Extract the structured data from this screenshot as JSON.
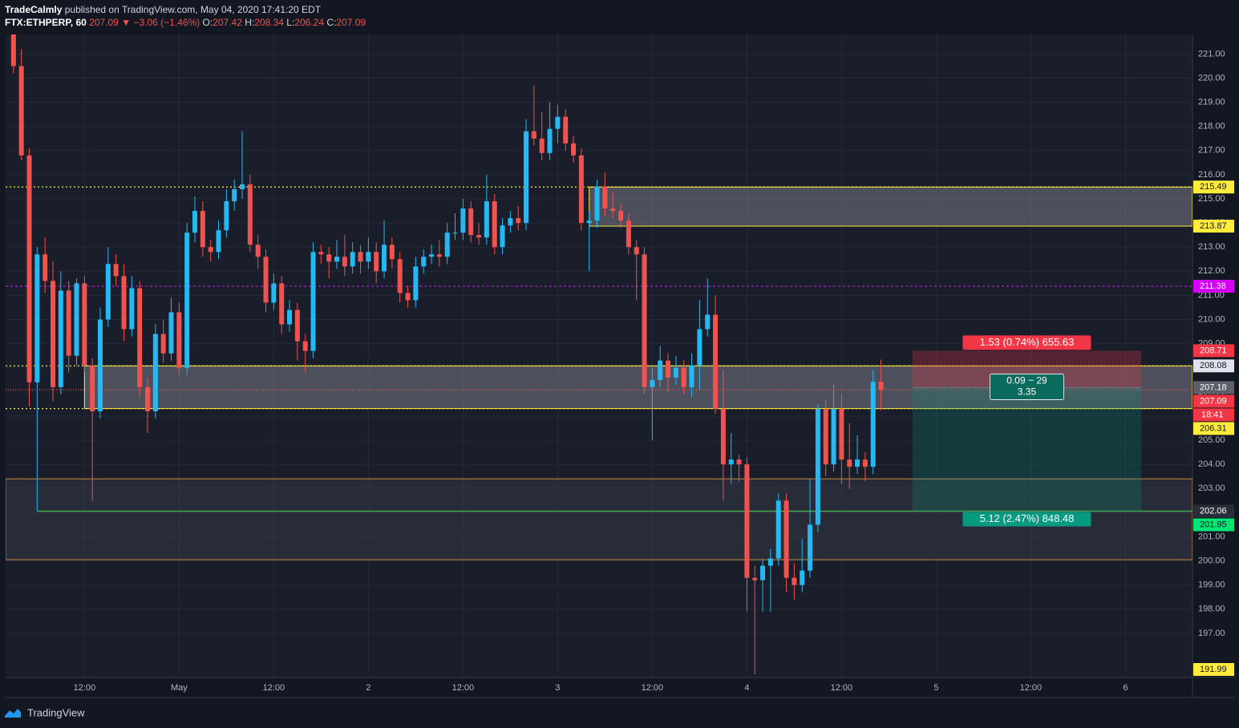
{
  "header": {
    "author": "TradeCalmly",
    "published": "published on TradingView.com, May 04, 2020 17:41:20 EDT",
    "symbol": "FTX:ETHPERP, 60",
    "arrow": "▼",
    "change": "−3.06 (−1.46%)",
    "o": "O:",
    "h": "H:",
    "l": "L:",
    "c": "C:"
  },
  "footer": {
    "brand": "TradingView"
  },
  "chart_data": {
    "type": "candlestick",
    "up_color": "#26b8f2",
    "down_color": "#ef5350",
    "grid": true,
    "x": [
      "2020-04-30T03:00",
      "2020-04-30T04:00",
      "2020-04-30T05:00",
      "2020-04-30T06:00",
      "2020-04-30T07:00",
      "2020-04-30T08:00",
      "2020-04-30T09:00",
      "2020-04-30T10:00",
      "2020-04-30T11:00",
      "2020-04-30T12:00",
      "2020-04-30T13:00",
      "2020-04-30T14:00",
      "2020-04-30T15:00",
      "2020-04-30T16:00",
      "2020-04-30T17:00",
      "2020-04-30T18:00",
      "2020-04-30T19:00",
      "2020-04-30T20:00",
      "2020-04-30T21:00",
      "2020-04-30T22:00",
      "2020-04-30T23:00",
      "2020-05-01T00:00",
      "2020-05-01T01:00",
      "2020-05-01T02:00",
      "2020-05-01T03:00",
      "2020-05-01T04:00",
      "2020-05-01T05:00",
      "2020-05-01T06:00",
      "2020-05-01T07:00",
      "2020-05-01T08:00",
      "2020-05-01T09:00",
      "2020-05-01T10:00",
      "2020-05-01T11:00",
      "2020-05-01T12:00",
      "2020-05-01T13:00",
      "2020-05-01T14:00",
      "2020-05-01T15:00",
      "2020-05-01T16:00",
      "2020-05-01T17:00",
      "2020-05-01T18:00",
      "2020-05-01T19:00",
      "2020-05-01T20:00",
      "2020-05-01T21:00",
      "2020-05-01T22:00",
      "2020-05-01T23:00",
      "2020-05-02T00:00",
      "2020-05-02T01:00",
      "2020-05-02T02:00",
      "2020-05-02T03:00",
      "2020-05-02T04:00",
      "2020-05-02T05:00",
      "2020-05-02T06:00",
      "2020-05-02T07:00",
      "2020-05-02T08:00",
      "2020-05-02T09:00",
      "2020-05-02T10:00",
      "2020-05-02T11:00",
      "2020-05-02T12:00",
      "2020-05-02T13:00",
      "2020-05-02T14:00",
      "2020-05-02T15:00",
      "2020-05-02T16:00",
      "2020-05-02T17:00",
      "2020-05-02T18:00",
      "2020-05-02T19:00",
      "2020-05-02T20:00",
      "2020-05-02T21:00",
      "2020-05-02T22:00",
      "2020-05-02T23:00",
      "2020-05-03T00:00",
      "2020-05-03T01:00",
      "2020-05-03T02:00",
      "2020-05-03T03:00",
      "2020-05-03T04:00",
      "2020-05-03T05:00",
      "2020-05-03T06:00",
      "2020-05-03T07:00",
      "2020-05-03T08:00",
      "2020-05-03T09:00",
      "2020-05-03T10:00",
      "2020-05-03T11:00",
      "2020-05-03T12:00",
      "2020-05-03T13:00",
      "2020-05-03T14:00",
      "2020-05-03T15:00",
      "2020-05-03T16:00",
      "2020-05-03T17:00",
      "2020-05-03T18:00",
      "2020-05-03T19:00",
      "2020-05-03T20:00",
      "2020-05-03T21:00",
      "2020-05-03T22:00",
      "2020-05-03T23:00",
      "2020-05-04T00:00",
      "2020-05-04T01:00",
      "2020-05-04T02:00",
      "2020-05-04T03:00",
      "2020-05-04T04:00",
      "2020-05-04T05:00",
      "2020-05-04T06:00",
      "2020-05-04T07:00",
      "2020-05-04T08:00",
      "2020-05-04T09:00",
      "2020-05-04T10:00",
      "2020-05-04T11:00",
      "2020-05-04T12:00",
      "2020-05-04T13:00",
      "2020-05-04T14:00",
      "2020-05-04T15:00",
      "2020-05-04T16:00",
      "2020-05-04T17:00"
    ],
    "open": [
      221.9,
      220.5,
      216.8,
      207.4,
      212.7,
      211.6,
      207.2,
      211.2,
      208.5,
      211.5,
      208.1,
      206.2,
      210.0,
      212.3,
      211.8,
      209.6,
      211.3,
      207.2,
      206.2,
      209.4,
      208.6,
      210.3,
      208.0,
      213.6,
      214.5,
      213.0,
      212.8,
      213.7,
      214.9,
      215.4,
      215.6,
      213.1,
      212.6,
      210.7,
      211.5,
      209.8,
      210.4,
      209.1,
      208.7,
      212.8,
      212.7,
      212.4,
      212.6,
      212.2,
      212.8,
      212.4,
      212.8,
      212.0,
      213.1,
      212.5,
      211.1,
      210.8,
      212.2,
      212.6,
      212.7,
      212.6,
      213.6,
      213.6,
      214.6,
      213.5,
      213.4,
      214.9,
      213.0,
      213.9,
      214.2,
      214.0,
      217.8,
      217.5,
      216.9,
      217.9,
      218.4,
      217.3,
      216.8,
      214.0,
      214.1,
      215.5,
      214.6,
      214.5,
      214.1,
      213.0,
      212.7,
      207.2,
      207.5,
      208.3,
      207.6,
      208.0,
      207.2,
      208.1,
      209.6,
      210.2,
      206.3,
      204.0,
      204.2,
      204.0,
      199.3,
      199.2,
      199.8,
      200.1,
      202.5,
      199.3,
      199.0,
      199.6,
      201.5,
      206.3,
      204.0,
      206.3,
      204.2,
      203.9,
      204.2,
      203.9,
      207.42
    ],
    "high": [
      222.3,
      221.2,
      217.1,
      213.0,
      213.4,
      212.4,
      212.0,
      211.6,
      211.7,
      211.8,
      208.4,
      210.5,
      213.0,
      212.7,
      212.3,
      211.8,
      211.6,
      207.6,
      209.8,
      210.0,
      210.9,
      210.7,
      214.0,
      215.1,
      214.9,
      213.3,
      214.1,
      215.4,
      215.8,
      217.8,
      216.0,
      213.5,
      212.9,
      211.9,
      211.8,
      210.8,
      210.7,
      209.4,
      213.2,
      213.1,
      213.0,
      213.3,
      213.5,
      213.2,
      213.1,
      213.4,
      213.2,
      214.1,
      213.4,
      212.8,
      211.4,
      212.6,
      212.9,
      213.1,
      213.3,
      214.0,
      214.4,
      215.0,
      214.9,
      214.0,
      216.0,
      215.2,
      214.2,
      214.5,
      214.7,
      218.3,
      219.7,
      218.6,
      219.0,
      218.9,
      218.7,
      217.6,
      217.1,
      214.5,
      215.8,
      216.1,
      215.3,
      214.8,
      214.4,
      213.3,
      213.0,
      208.0,
      208.9,
      208.6,
      208.5,
      208.3,
      208.6,
      210.8,
      211.7,
      211.0,
      207.9,
      205.3,
      204.4,
      204.3,
      199.8,
      200.1,
      200.5,
      202.8,
      202.8,
      199.9,
      200.9,
      203.4,
      206.5,
      206.7,
      207.3,
      206.9,
      205.7,
      205.2,
      204.5,
      207.9,
      208.34
    ],
    "low": [
      220.2,
      216.6,
      206.4,
      202.06,
      211.1,
      206.6,
      206.9,
      207.8,
      208.1,
      207.8,
      202.5,
      205.9,
      209.7,
      211.4,
      209.1,
      209.3,
      206.8,
      205.3,
      205.9,
      208.2,
      208.3,
      207.7,
      207.7,
      213.2,
      212.6,
      212.4,
      212.5,
      213.4,
      214.5,
      215.0,
      212.8,
      212.1,
      210.3,
      210.4,
      209.4,
      209.5,
      208.3,
      207.8,
      208.4,
      212.3,
      211.7,
      212.1,
      211.8,
      211.9,
      211.9,
      212.1,
      211.5,
      211.7,
      212.1,
      210.7,
      210.5,
      210.5,
      211.9,
      212.3,
      212.2,
      212.3,
      213.3,
      213.3,
      213.2,
      213.1,
      213.1,
      212.7,
      212.7,
      213.6,
      213.7,
      213.7,
      217.2,
      216.6,
      216.6,
      217.3,
      217.0,
      216.5,
      213.7,
      212.0,
      213.8,
      214.3,
      214.2,
      213.8,
      212.7,
      210.8,
      206.9,
      205.0,
      207.2,
      207.0,
      207.3,
      206.9,
      206.8,
      207.1,
      209.3,
      206.1,
      202.5,
      203.2,
      203.3,
      197.9,
      195.3,
      197.9,
      197.9,
      199.8,
      198.7,
      198.4,
      198.7,
      199.3,
      201.2,
      203.5,
      203.7,
      203.2,
      203.0,
      203.6,
      203.3,
      203.6,
      206.24
    ],
    "close": [
      220.5,
      216.8,
      207.4,
      212.7,
      211.6,
      207.2,
      211.2,
      208.5,
      211.5,
      208.1,
      206.2,
      210.0,
      212.3,
      211.8,
      209.6,
      211.3,
      207.2,
      206.2,
      209.4,
      208.6,
      210.3,
      208.0,
      213.6,
      214.5,
      213.0,
      212.8,
      213.7,
      214.9,
      215.4,
      215.6,
      213.1,
      212.6,
      210.7,
      211.5,
      209.8,
      210.4,
      209.1,
      208.7,
      212.8,
      212.7,
      212.4,
      212.6,
      212.2,
      212.8,
      212.4,
      212.8,
      212.0,
      213.1,
      212.5,
      211.1,
      210.8,
      212.2,
      212.6,
      212.7,
      212.6,
      213.6,
      213.6,
      214.6,
      213.5,
      213.4,
      214.9,
      213.0,
      213.9,
      214.2,
      214.0,
      217.8,
      217.5,
      216.9,
      217.9,
      218.4,
      217.3,
      216.8,
      214.0,
      214.1,
      215.5,
      214.6,
      214.5,
      214.1,
      213.0,
      212.7,
      207.2,
      207.5,
      208.3,
      207.6,
      208.0,
      207.2,
      208.1,
      209.6,
      210.2,
      206.3,
      204.0,
      204.2,
      204.0,
      199.3,
      199.2,
      199.8,
      200.1,
      202.5,
      199.3,
      199.0,
      199.6,
      201.5,
      206.3,
      204.0,
      206.3,
      204.2,
      203.9,
      204.2,
      203.9,
      207.42,
      207.09
    ],
    "xlim": [
      "2020-04-30T02:00",
      "2020-05-06T08:30"
    ],
    "xticks": [
      {
        "value": "2020-04-30T12:00",
        "label": "12:00"
      },
      {
        "value": "2020-05-01T00:00",
        "label": "May"
      },
      {
        "value": "2020-05-01T12:00",
        "label": "12:00"
      },
      {
        "value": "2020-05-02T00:00",
        "label": "2"
      },
      {
        "value": "2020-05-02T12:00",
        "label": "12:00"
      },
      {
        "value": "2020-05-03T00:00",
        "label": "3"
      },
      {
        "value": "2020-05-03T12:00",
        "label": "12:00"
      },
      {
        "value": "2020-05-04T00:00",
        "label": "4"
      },
      {
        "value": "2020-05-04T12:00",
        "label": "12:00"
      },
      {
        "value": "2020-05-05T00:00",
        "label": "5"
      },
      {
        "value": "2020-05-05T12:00",
        "label": "12:00"
      },
      {
        "value": "2020-05-06T00:00",
        "label": "6"
      }
    ],
    "ylim": [
      195.17,
      221.81
    ],
    "yticks": [
      {
        "value": 197,
        "label": "197.00"
      },
      {
        "value": 198,
        "label": "198.00"
      },
      {
        "value": 199,
        "label": "199.00"
      },
      {
        "value": 200,
        "label": "200.00"
      },
      {
        "value": 201,
        "label": "201.00"
      },
      {
        "value": 202,
        "label": "202.00"
      },
      {
        "value": 203,
        "label": "203.00"
      },
      {
        "value": 204,
        "label": "204.00"
      },
      {
        "value": 205,
        "label": "205.00"
      },
      {
        "value": 206,
        "label": "206.00"
      },
      {
        "value": 207,
        "label": "207.00"
      },
      {
        "value": 208,
        "label": "208.00"
      },
      {
        "value": 209,
        "label": "209.00"
      },
      {
        "value": 210,
        "label": "210.00"
      },
      {
        "value": 211,
        "label": "211.00"
      },
      {
        "value": 212,
        "label": "212.00"
      },
      {
        "value": 213,
        "label": "213.00"
      },
      {
        "value": 214,
        "label": "214.00"
      },
      {
        "value": 215,
        "label": "215.00"
      },
      {
        "value": 216,
        "label": "216.00"
      },
      {
        "value": 217,
        "label": "217.00"
      },
      {
        "value": 218,
        "label": "218.00"
      },
      {
        "value": 219,
        "label": "219.00"
      },
      {
        "value": 220,
        "label": "220.00"
      },
      {
        "value": 221,
        "label": "221.00"
      }
    ],
    "zones": [
      {
        "top": 215.49,
        "bottom": 213.87,
        "start": "2020-05-03T04:00",
        "fill": "#8b8e99",
        "edge": "#ffeb3b"
      },
      {
        "top": 208.08,
        "bottom": 206.31,
        "start": "2020-04-30T12:00",
        "fill": "#8b8e99",
        "edge": "#ffeb3b"
      },
      {
        "top": 203.4,
        "bottom": 200.05,
        "start": "2020-04-30T02:00",
        "fill": "#3a3e4a",
        "edge": "#c8883a"
      }
    ],
    "levels": [
      {
        "value": 215.49,
        "color": "#ffeb3b",
        "dash": "2,3"
      },
      {
        "value": 208.08,
        "color": "#ffeb3b",
        "dash": "2,3"
      },
      {
        "value": 206.31,
        "color": "#ffeb3b",
        "dash": "2,3"
      },
      {
        "value": 211.38,
        "color": "#d500f9",
        "dash": "3,3"
      },
      {
        "value": 207.09,
        "color": "#ef5350",
        "dash": "1,2"
      },
      {
        "value": 202.06,
        "color": "#4caf50",
        "dash": "",
        "start": "2020-04-30T06:00"
      }
    ],
    "position": {
      "entry": 207.18,
      "stop": 208.71,
      "target": 202.06,
      "start": "2020-05-04T21:00",
      "end": "2020-05-06T02:00",
      "stop_label": "1.53 (0.74%) 655.63",
      "mid_label": [
        "0.09 ~ 29",
        "3.35"
      ],
      "target_label": "5.12 (2.47%) 848.48"
    },
    "price_labels": [
      {
        "value": 215.49,
        "bg": "#ffeb3b",
        "fg": "#131722"
      },
      {
        "value": 213.87,
        "bg": "#ffeb3b",
        "fg": "#131722"
      },
      {
        "value": 211.38,
        "bg": "#d500f9",
        "fg": "#ffffff"
      },
      {
        "value": 208.08,
        "bg": "#e0e3eb",
        "fg": "#131722"
      },
      {
        "value": 208.71,
        "bg": "#f23645",
        "fg": "#ffffff"
      },
      {
        "value": 206.31,
        "bg": "#ffeb3b",
        "fg": "#131722"
      },
      {
        "value": 207.18,
        "bg": "#5d606b",
        "fg": "#ffffff"
      },
      {
        "value": 207.09,
        "bg": "#f23645",
        "fg": "#ffffff",
        "countdown": "18:41"
      },
      {
        "value": 201.95,
        "bg": "#00e676",
        "fg": "#131722"
      },
      {
        "value": 202.06,
        "bg": "#2a2e39",
        "fg": "#ffffff"
      },
      {
        "value": 191.99,
        "bg": "#ffeb3b",
        "fg": "#131722"
      }
    ]
  }
}
